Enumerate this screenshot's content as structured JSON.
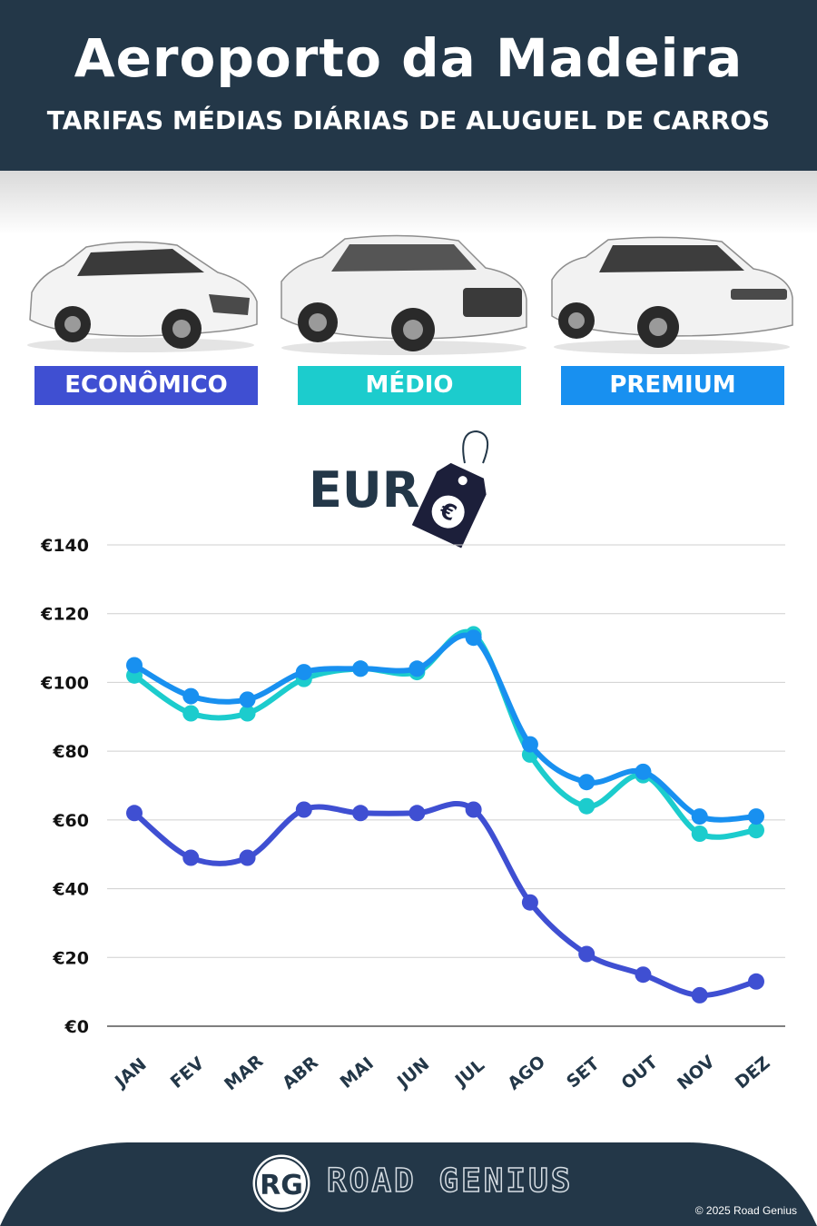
{
  "header": {
    "title": "Aeroporto da Madeira",
    "subtitle": "TARIFAS MÉDIAS DIÁRIAS DE ALUGUEL DE CARROS"
  },
  "categories_labels": [
    {
      "label": "ECONÔMICO",
      "color": "#3f4fd2"
    },
    {
      "label": "MÉDIO",
      "color": "#1ccccd"
    },
    {
      "label": "PREMIUM",
      "color": "#1890f0"
    }
  ],
  "currency": {
    "label": "EUR",
    "tag_icon": "euro-price-tag-icon",
    "tag_symbol": "€"
  },
  "chart_data": {
    "type": "line",
    "categories": [
      "JAN",
      "FEV",
      "MAR",
      "ABR",
      "MAI",
      "JUN",
      "JUL",
      "AGO",
      "SET",
      "OUT",
      "NOV",
      "DEZ"
    ],
    "series": [
      {
        "name": "ECONÔMICO",
        "color": "#3f4fd2",
        "values": [
          62,
          49,
          49,
          63,
          62,
          62,
          63,
          36,
          21,
          15,
          9,
          13
        ]
      },
      {
        "name": "MÉDIO",
        "color": "#1ccccd",
        "values": [
          102,
          91,
          91,
          101,
          104,
          103,
          114,
          79,
          64,
          73,
          56,
          57
        ]
      },
      {
        "name": "PREMIUM",
        "color": "#1890f0",
        "values": [
          105,
          96,
          95,
          103,
          104,
          104,
          113,
          82,
          71,
          74,
          61,
          61
        ]
      }
    ],
    "yticks": [
      "€0",
      "€20",
      "€40",
      "€60",
      "€80",
      "€100",
      "€120",
      "€140"
    ],
    "ylim": [
      0,
      140
    ],
    "grid": true
  },
  "footer": {
    "logo_text": "RG",
    "brand": "ROAD GENIUS",
    "copyright": "© 2025 Road Genius"
  }
}
